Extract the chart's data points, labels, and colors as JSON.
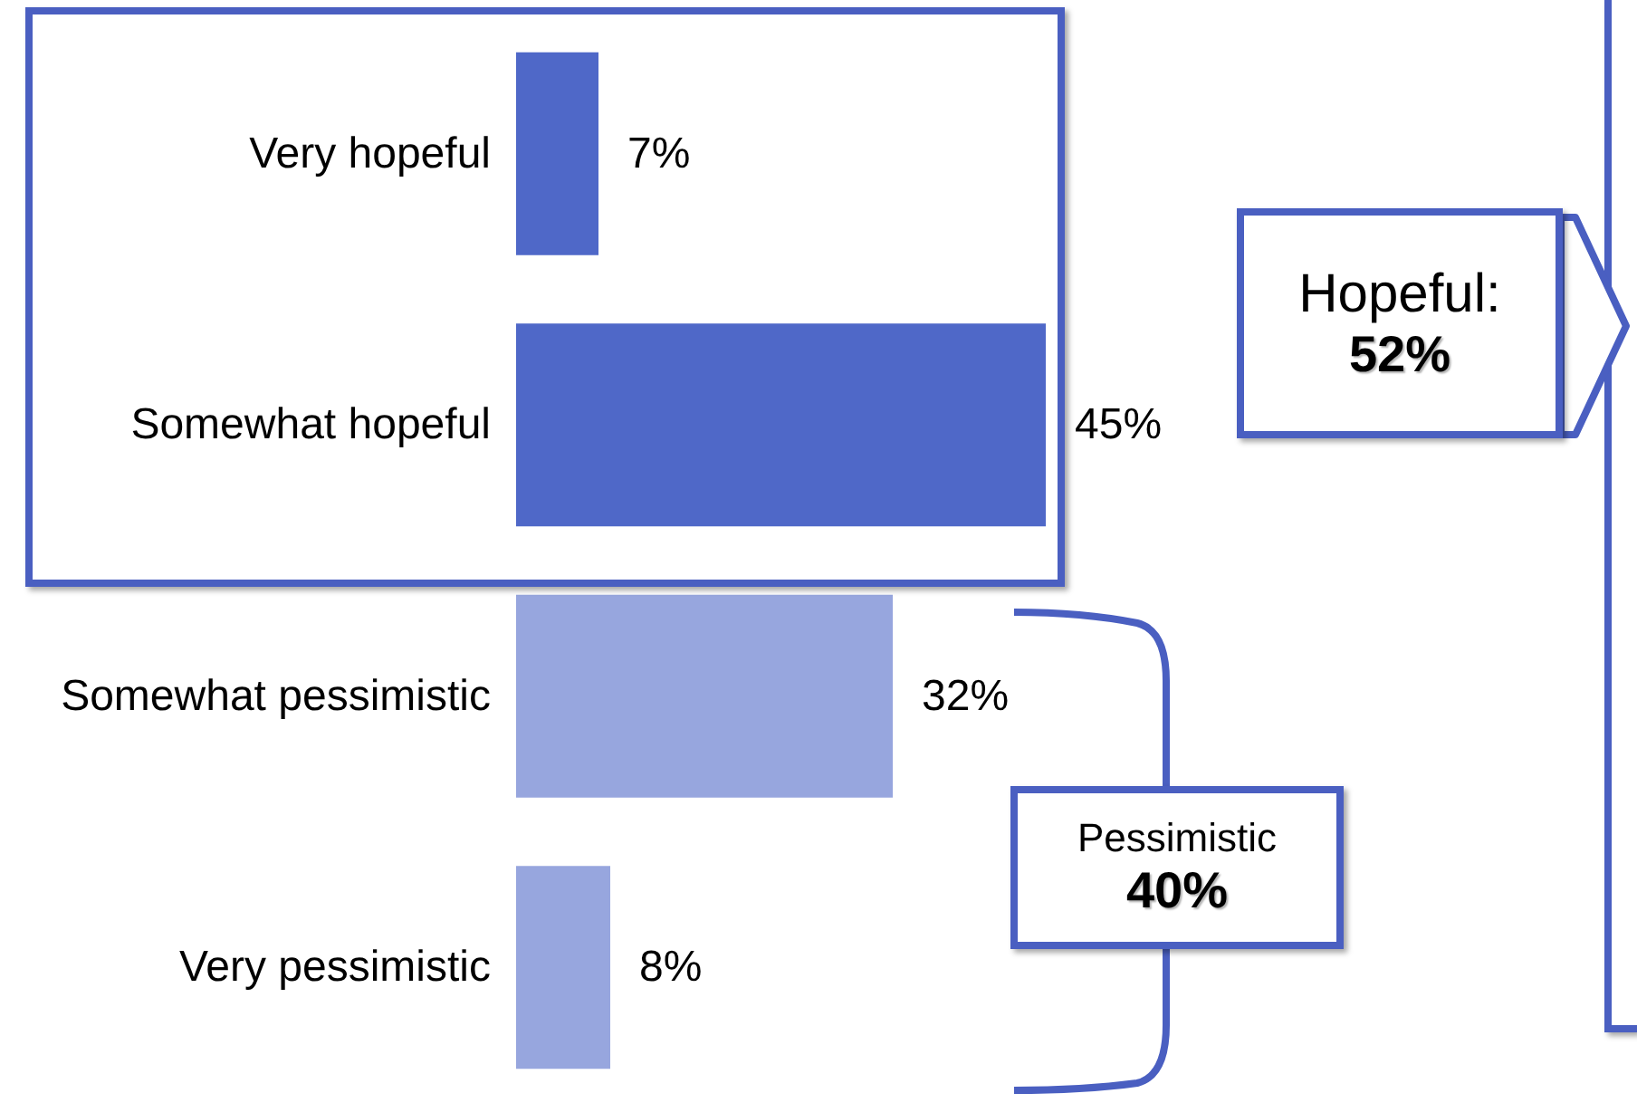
{
  "chart_data": {
    "type": "bar",
    "orientation": "horizontal",
    "categories": [
      "Very hopeful",
      "Somewhat hopeful",
      "Somewhat pessimistic",
      "Very pessimistic"
    ],
    "values": [
      7,
      45,
      32,
      8
    ],
    "colors": [
      "#4f68c8",
      "#4f68c8",
      "#97a6de",
      "#97a6de"
    ],
    "value_labels": [
      "7%",
      "45%",
      "32%",
      "8%"
    ],
    "grid": false,
    "annotations": [
      "Hopeful: 52%",
      "Pessimistic 40%"
    ]
  }
}
